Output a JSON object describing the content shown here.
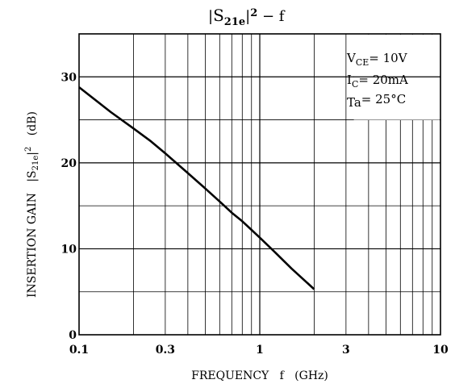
{
  "chart_data": {
    "type": "line",
    "title": {
      "pipe_open": "|",
      "main": "S",
      "sub": "21e",
      "pipe_close": "|",
      "sup": "2",
      "rest": " − f"
    },
    "xlabel": "FREQUENCY   f   (GHz)",
    "ylabel": {
      "pre": "INSERTION GAIN   |S",
      "sub": "21e",
      "mid": "|",
      "sup": "2",
      "post": "   (dB)"
    },
    "x_scale": "log",
    "xlim": [
      0.1,
      10
    ],
    "ylim": [
      0,
      35
    ],
    "xticks": [
      0.1,
      0.3,
      1,
      3,
      10
    ],
    "xtick_labels": [
      "0.1",
      "0.3",
      "1",
      "3",
      "10"
    ],
    "yticks": [
      0,
      10,
      20,
      30
    ],
    "ytick_labels": [
      "0",
      "10",
      "20",
      "30"
    ],
    "grid": true,
    "legend": "none",
    "conditions": [
      {
        "main": "V",
        "sub": "CE",
        "value": "= 10V"
      },
      {
        "main": "I",
        "sub": "C",
        "value": "= 20mA"
      },
      {
        "main": "Ta",
        "sub": "",
        "value": "= 25°C"
      }
    ],
    "series": [
      {
        "x": [
          0.1,
          0.15,
          0.2,
          0.25,
          0.3,
          0.4,
          0.5,
          0.6,
          0.7,
          0.8,
          0.9,
          1.0,
          1.2,
          1.5,
          2.0
        ],
        "y": [
          28.8,
          25.9,
          24.0,
          22.5,
          21.1,
          18.8,
          17.0,
          15.5,
          14.2,
          13.2,
          12.2,
          11.3,
          9.7,
          7.7,
          5.3
        ]
      }
    ]
  }
}
